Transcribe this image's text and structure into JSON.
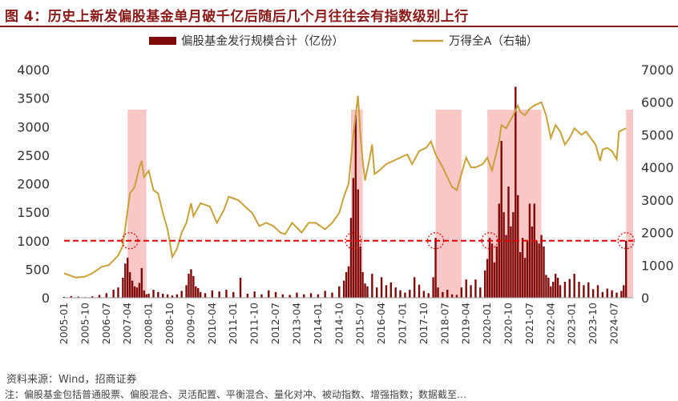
{
  "title": "图 4：历史上新发偏股基金单月破千亿后随后几个月往往会有指数级别上行",
  "source": "资料来源：Wind，招商证券",
  "footnote_fragment": "注：偏股基金包括普通股票、偏股混合、灵活配置、平衡混合、量化对冲、被动指数、增强指数；数据截至…",
  "colors": {
    "bar": "#7f0a0a",
    "line": "#c9a13a",
    "shade": "#f8b4b4",
    "threshold": "#e00000",
    "axis_text": "#333333",
    "title": "#8b1a1a"
  },
  "chart_data": {
    "type": "bar+line",
    "series": [
      {
        "name": "偏股基金发行规模合计（亿份）",
        "type": "bar",
        "axis": "left",
        "points": [
          [
            "2005-01",
            15
          ],
          [
            "2005-04",
            30
          ],
          [
            "2005-07",
            20
          ],
          [
            "2005-10",
            10
          ],
          [
            "2006-01",
            25
          ],
          [
            "2006-04",
            50
          ],
          [
            "2006-07",
            80
          ],
          [
            "2006-10",
            140
          ],
          [
            "2006-12",
            180
          ],
          [
            "2007-02",
            350
          ],
          [
            "2007-03",
            600
          ],
          [
            "2007-04",
            700
          ],
          [
            "2007-05",
            450
          ],
          [
            "2007-06",
            300
          ],
          [
            "2007-07",
            200
          ],
          [
            "2007-08",
            180
          ],
          [
            "2007-09",
            260
          ],
          [
            "2007-10",
            520
          ],
          [
            "2007-11",
            130
          ],
          [
            "2007-12",
            60
          ],
          [
            "2008-01",
            70
          ],
          [
            "2008-03",
            140
          ],
          [
            "2008-05",
            100
          ],
          [
            "2008-07",
            70
          ],
          [
            "2008-09",
            60
          ],
          [
            "2008-11",
            40
          ],
          [
            "2009-01",
            60
          ],
          [
            "2009-03",
            120
          ],
          [
            "2009-05",
            220
          ],
          [
            "2009-06",
            420
          ],
          [
            "2009-07",
            500
          ],
          [
            "2009-08",
            380
          ],
          [
            "2009-09",
            200
          ],
          [
            "2009-10",
            170
          ],
          [
            "2009-11",
            100
          ],
          [
            "2010-01",
            80
          ],
          [
            "2010-04",
            130
          ],
          [
            "2010-07",
            110
          ],
          [
            "2010-10",
            140
          ],
          [
            "2011-01",
            100
          ],
          [
            "2011-04",
            350
          ],
          [
            "2011-07",
            70
          ],
          [
            "2011-10",
            110
          ],
          [
            "2012-01",
            60
          ],
          [
            "2012-04",
            130
          ],
          [
            "2012-07",
            100
          ],
          [
            "2012-10",
            60
          ],
          [
            "2013-01",
            50
          ],
          [
            "2013-04",
            90
          ],
          [
            "2013-07",
            60
          ],
          [
            "2013-10",
            80
          ],
          [
            "2014-01",
            60
          ],
          [
            "2014-04",
            120
          ],
          [
            "2014-07",
            90
          ],
          [
            "2014-10",
            200
          ],
          [
            "2014-12",
            300
          ],
          [
            "2015-01",
            450
          ],
          [
            "2015-02",
            550
          ],
          [
            "2015-03",
            1400
          ],
          [
            "2015-04",
            2100
          ],
          [
            "2015-05",
            3200
          ],
          [
            "2015-06",
            1900
          ],
          [
            "2015-07",
            900
          ],
          [
            "2015-08",
            450
          ],
          [
            "2015-09",
            250
          ],
          [
            "2015-10",
            200
          ],
          [
            "2015-12",
            420
          ],
          [
            "2016-02",
            180
          ],
          [
            "2016-04",
            360
          ],
          [
            "2016-06",
            220
          ],
          [
            "2016-08",
            270
          ],
          [
            "2016-10",
            180
          ],
          [
            "2016-12",
            130
          ],
          [
            "2017-02",
            90
          ],
          [
            "2017-04",
            140
          ],
          [
            "2017-06",
            360
          ],
          [
            "2017-08",
            230
          ],
          [
            "2017-10",
            120
          ],
          [
            "2017-12",
            80
          ],
          [
            "2018-02",
            360
          ],
          [
            "2018-03",
            1050
          ],
          [
            "2018-04",
            180
          ],
          [
            "2018-06",
            100
          ],
          [
            "2018-08",
            140
          ],
          [
            "2018-10",
            60
          ],
          [
            "2018-12",
            50
          ],
          [
            "2019-02",
            180
          ],
          [
            "2019-04",
            320
          ],
          [
            "2019-06",
            220
          ],
          [
            "2019-08",
            320
          ],
          [
            "2019-10",
            180
          ],
          [
            "2019-12",
            480
          ],
          [
            "2020-01",
            680
          ],
          [
            "2020-02",
            1050
          ],
          [
            "2020-03",
            950
          ],
          [
            "2020-04",
            620
          ],
          [
            "2020-05",
            900
          ],
          [
            "2020-06",
            1650
          ],
          [
            "2020-07",
            2750
          ],
          [
            "2020-08",
            1500
          ],
          [
            "2020-09",
            1100
          ],
          [
            "2020-10",
            1950
          ],
          [
            "2020-11",
            1250
          ],
          [
            "2020-12",
            1500
          ],
          [
            "2021-01",
            3700
          ],
          [
            "2021-02",
            1800
          ],
          [
            "2021-03",
            800
          ],
          [
            "2021-04",
            1050
          ],
          [
            "2021-05",
            700
          ],
          [
            "2021-06",
            1000
          ],
          [
            "2021-07",
            1650
          ],
          [
            "2021-08",
            1250
          ],
          [
            "2021-09",
            1650
          ],
          [
            "2021-10",
            1000
          ],
          [
            "2021-11",
            950
          ],
          [
            "2021-12",
            1100
          ],
          [
            "2022-01",
            900
          ],
          [
            "2022-02",
            400
          ],
          [
            "2022-03",
            350
          ],
          [
            "2022-04",
            200
          ],
          [
            "2022-05",
            280
          ],
          [
            "2022-06",
            420
          ],
          [
            "2022-07",
            350
          ],
          [
            "2022-08",
            220
          ],
          [
            "2022-10",
            280
          ],
          [
            "2022-12",
            330
          ],
          [
            "2023-02",
            420
          ],
          [
            "2023-04",
            280
          ],
          [
            "2023-06",
            220
          ],
          [
            "2023-08",
            270
          ],
          [
            "2023-10",
            150
          ],
          [
            "2023-12",
            220
          ],
          [
            "2024-02",
            100
          ],
          [
            "2024-04",
            160
          ],
          [
            "2024-06",
            130
          ],
          [
            "2024-08",
            90
          ],
          [
            "2024-10",
            120
          ],
          [
            "2024-11",
            220
          ],
          [
            "2024-12",
            1000
          ]
        ]
      },
      {
        "name": "万得全A（右轴）",
        "type": "line",
        "axis": "right",
        "points": [
          [
            "2005-01",
            750
          ],
          [
            "2005-06",
            620
          ],
          [
            "2005-10",
            650
          ],
          [
            "2006-01",
            750
          ],
          [
            "2006-05",
            950
          ],
          [
            "2006-08",
            1000
          ],
          [
            "2006-12",
            1300
          ],
          [
            "2007-02",
            1600
          ],
          [
            "2007-05",
            3200
          ],
          [
            "2007-07",
            3400
          ],
          [
            "2007-09",
            4000
          ],
          [
            "2007-10",
            4200
          ],
          [
            "2007-11",
            3700
          ],
          [
            "2008-01",
            3900
          ],
          [
            "2008-03",
            3300
          ],
          [
            "2008-05",
            3200
          ],
          [
            "2008-07",
            2600
          ],
          [
            "2008-09",
            2100
          ],
          [
            "2008-11",
            1250
          ],
          [
            "2009-01",
            1500
          ],
          [
            "2009-03",
            2000
          ],
          [
            "2009-05",
            2300
          ],
          [
            "2009-07",
            2900
          ],
          [
            "2009-08",
            2500
          ],
          [
            "2009-11",
            2900
          ],
          [
            "2010-03",
            2800
          ],
          [
            "2010-06",
            2300
          ],
          [
            "2010-09",
            2700
          ],
          [
            "2010-11",
            3100
          ],
          [
            "2011-03",
            3000
          ],
          [
            "2011-06",
            2800
          ],
          [
            "2011-09",
            2600
          ],
          [
            "2011-12",
            2200
          ],
          [
            "2012-03",
            2300
          ],
          [
            "2012-06",
            2200
          ],
          [
            "2012-09",
            2000
          ],
          [
            "2012-11",
            1950
          ],
          [
            "2013-02",
            2300
          ],
          [
            "2013-06",
            2000
          ],
          [
            "2013-09",
            2300
          ],
          [
            "2013-12",
            2300
          ],
          [
            "2014-04",
            2100
          ],
          [
            "2014-07",
            2300
          ],
          [
            "2014-10",
            2600
          ],
          [
            "2014-12",
            3100
          ],
          [
            "2015-02",
            3500
          ],
          [
            "2015-04",
            5000
          ],
          [
            "2015-06",
            6200
          ],
          [
            "2015-07",
            5000
          ],
          [
            "2015-08",
            4200
          ],
          [
            "2015-09",
            3600
          ],
          [
            "2015-11",
            4300
          ],
          [
            "2015-12",
            4700
          ],
          [
            "2016-01",
            3800
          ],
          [
            "2016-03",
            3900
          ],
          [
            "2016-06",
            4100
          ],
          [
            "2016-09",
            4200
          ],
          [
            "2016-12",
            4300
          ],
          [
            "2017-03",
            4400
          ],
          [
            "2017-05",
            4100
          ],
          [
            "2017-08",
            4500
          ],
          [
            "2017-11",
            4600
          ],
          [
            "2018-01",
            4800
          ],
          [
            "2018-03",
            4400
          ],
          [
            "2018-06",
            4000
          ],
          [
            "2018-08",
            3700
          ],
          [
            "2018-10",
            3400
          ],
          [
            "2018-12",
            3300
          ],
          [
            "2019-02",
            3800
          ],
          [
            "2019-04",
            4300
          ],
          [
            "2019-06",
            4000
          ],
          [
            "2019-08",
            4000
          ],
          [
            "2019-11",
            4100
          ],
          [
            "2020-01",
            4300
          ],
          [
            "2020-03",
            3900
          ],
          [
            "2020-06",
            4800
          ],
          [
            "2020-07",
            5300
          ],
          [
            "2020-09",
            5200
          ],
          [
            "2020-12",
            5600
          ],
          [
            "2021-02",
            5900
          ],
          [
            "2021-03",
            5700
          ],
          [
            "2021-05",
            5600
          ],
          [
            "2021-07",
            5800
          ],
          [
            "2021-09",
            5900
          ],
          [
            "2021-12",
            6000
          ],
          [
            "2022-02",
            5600
          ],
          [
            "2022-04",
            4900
          ],
          [
            "2022-06",
            5300
          ],
          [
            "2022-08",
            5100
          ],
          [
            "2022-10",
            4700
          ],
          [
            "2022-12",
            4900
          ],
          [
            "2023-02",
            5200
          ],
          [
            "2023-05",
            5000
          ],
          [
            "2023-07",
            5100
          ],
          [
            "2023-09",
            4900
          ],
          [
            "2023-11",
            4700
          ],
          [
            "2024-01",
            4200
          ],
          [
            "2024-02",
            4550
          ],
          [
            "2024-04",
            4600
          ],
          [
            "2024-06",
            4500
          ],
          [
            "2024-08",
            4250
          ],
          [
            "2024-09",
            5100
          ],
          [
            "2024-12",
            5200
          ]
        ]
      }
    ],
    "shaded_periods": [
      [
        "2007-04",
        "2007-12"
      ],
      [
        "2015-03",
        "2015-08"
      ],
      [
        "2018-03",
        "2019-02"
      ],
      [
        "2020-01",
        "2021-12"
      ],
      [
        "2024-12",
        "2025-03"
      ]
    ],
    "threshold": 1000,
    "threshold_marks": [
      "2007-05",
      "2015-04",
      "2018-03",
      "2020-02",
      "2024-12"
    ],
    "x_ticks": [
      "2005-01",
      "2005-10",
      "2006-07",
      "2007-04",
      "2008-01",
      "2008-10",
      "2009-07",
      "2010-04",
      "2011-01",
      "2011-10",
      "2012-07",
      "2013-04",
      "2014-01",
      "2014-10",
      "2015-07",
      "2016-04",
      "2017-01",
      "2017-10",
      "2018-07",
      "2019-04",
      "2020-01",
      "2020-10",
      "2021-07",
      "2022-04",
      "2023-01",
      "2023-10",
      "2024-07"
    ],
    "y_left": {
      "min": 0,
      "max": 4000,
      "ticks": [
        0,
        500,
        1000,
        1500,
        2000,
        2500,
        3000,
        3500,
        4000
      ]
    },
    "y_right": {
      "min": 0,
      "max": 7000,
      "ticks": [
        0,
        1000,
        2000,
        3000,
        4000,
        5000,
        6000,
        7000
      ]
    },
    "x_range": [
      "2005-01",
      "2025-03"
    ],
    "legend_position": "top"
  }
}
